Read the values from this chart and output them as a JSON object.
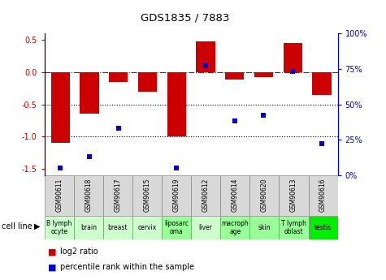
{
  "title": "GDS1835 / 7883",
  "samples": [
    "GSM90611",
    "GSM90618",
    "GSM90617",
    "GSM90615",
    "GSM90619",
    "GSM90612",
    "GSM90614",
    "GSM90620",
    "GSM90613",
    "GSM90616"
  ],
  "cell_lines": [
    "B lymph\nocyte",
    "brain",
    "breast",
    "cervix",
    "liposarc\noma",
    "liver",
    "macroph\nage",
    "skin",
    "T lymph\noblast",
    "testis"
  ],
  "cell_line_colors": [
    "#ccffcc",
    "#ccffcc",
    "#ccffcc",
    "#ccffcc",
    "#99ff99",
    "#ccffcc",
    "#99ff99",
    "#99ff99",
    "#99ff99",
    "#00ee00"
  ],
  "log2_ratio": [
    -1.1,
    -0.65,
    -0.15,
    -0.3,
    -1.0,
    0.48,
    -0.12,
    -0.08,
    0.45,
    -0.35
  ],
  "percentile_rank": [
    5,
    13,
    33,
    null,
    5,
    77,
    38,
    42,
    73,
    22
  ],
  "bar_color": "#cc0000",
  "dot_color": "#0000cc",
  "ylim_left": [
    -1.6,
    0.6
  ],
  "ylim_right": [
    0,
    100
  ],
  "yticks_left": [
    -1.5,
    -1.0,
    -0.5,
    0.0,
    0.5
  ],
  "yticks_right": [
    0,
    25,
    50,
    75,
    100
  ],
  "ytick_labels_right": [
    "0%",
    "25%",
    "50%",
    "75%",
    "100%"
  ],
  "hline_y": 0,
  "dotted_lines": [
    -0.5,
    -1.0
  ],
  "bar_width": 0.65,
  "legend_items": [
    {
      "label": "log2 ratio",
      "color": "#cc0000"
    },
    {
      "label": "percentile rank within the sample",
      "color": "#0000cc"
    }
  ]
}
